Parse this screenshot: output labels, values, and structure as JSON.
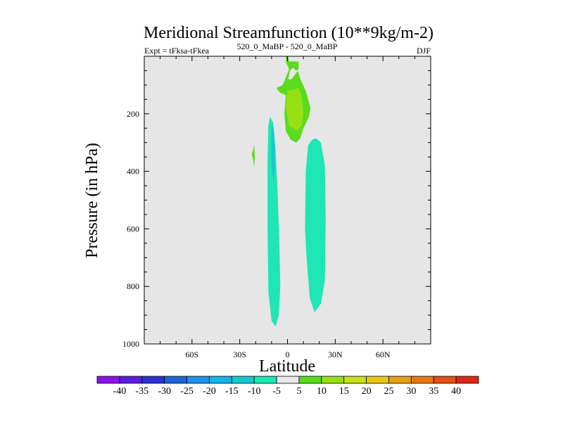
{
  "chart_data": {
    "type": "contour",
    "title": "Meridional Streamfunction (10**9kg/m-2)",
    "left_subtitle": "Expt = tFksa-tFkea",
    "center_subtitle": "520_0_MaBP - 520_0_MaBP",
    "right_subtitle": "DJF",
    "xlabel": "Latitude",
    "ylabel": "Pressure (in hPa)",
    "xlim": [
      -90,
      90
    ],
    "ylim": [
      1000,
      0
    ],
    "x_ticks": [
      {
        "value": -60,
        "label": "60S"
      },
      {
        "value": -30,
        "label": "30S"
      },
      {
        "value": 0,
        "label": "0"
      },
      {
        "value": 30,
        "label": "30N"
      },
      {
        "value": 60,
        "label": "60N"
      }
    ],
    "y_ticks": [
      {
        "value": 200,
        "label": "200"
      },
      {
        "value": 400,
        "label": "400"
      },
      {
        "value": 600,
        "label": "600"
      },
      {
        "value": 800,
        "label": "800"
      },
      {
        "value": 1000,
        "label": "1000"
      }
    ],
    "background_color": "#e6e6e6",
    "contour_levels": [
      -40,
      -35,
      -30,
      -25,
      -20,
      -15,
      -10,
      -5,
      5,
      10,
      15,
      20,
      25,
      30,
      35,
      40
    ],
    "colorbar_colors": [
      "#8a14e6",
      "#5a1ee0",
      "#2a32d2",
      "#1e64d8",
      "#1e90e8",
      "#14b4e6",
      "#14c8d2",
      "#1ee6b4",
      "#e8e8e8",
      "#5adc1e",
      "#96e014",
      "#c8e014",
      "#e6c814",
      "#e6a014",
      "#e67814",
      "#e65014",
      "#dc2814"
    ],
    "regions": [
      {
        "name": "sh-cell-outer",
        "level": "-10 to -5",
        "color": "#1ee6b4",
        "points": [
          [
            -11,
            210
          ],
          [
            -9,
            230
          ],
          [
            -7.5,
            320
          ],
          [
            -6,
            500
          ],
          [
            -5,
            680
          ],
          [
            -4.5,
            800
          ],
          [
            -5.5,
            900
          ],
          [
            -7.5,
            940
          ],
          [
            -10,
            920
          ],
          [
            -12,
            820
          ],
          [
            -12.5,
            600
          ],
          [
            -12.5,
            350
          ],
          [
            -12,
            240
          ]
        ]
      },
      {
        "name": "sh-cell-inner",
        "level": "-15 to -10",
        "color": "#14c8d2",
        "points": [
          [
            -10,
            235
          ],
          [
            -8.5,
            260
          ],
          [
            -8,
            330
          ],
          [
            -8,
            400
          ],
          [
            -9,
            430
          ],
          [
            -10.2,
            360
          ]
        ]
      },
      {
        "name": "nh-cell",
        "level": "-10 to -5",
        "color": "#1ee6b4",
        "points": [
          [
            18,
            285
          ],
          [
            21,
            300
          ],
          [
            23.5,
            380
          ],
          [
            24,
            560
          ],
          [
            23.5,
            780
          ],
          [
            21,
            860
          ],
          [
            17,
            890
          ],
          [
            14,
            840
          ],
          [
            12,
            700
          ],
          [
            11,
            600
          ],
          [
            11.5,
            400
          ],
          [
            13,
            310
          ],
          [
            15.5,
            290
          ]
        ]
      },
      {
        "name": "upper-cell-outer",
        "level": "5 to 10",
        "color": "#5adc1e",
        "points": [
          [
            -1,
            0
          ],
          [
            0.5,
            0
          ],
          [
            1,
            18
          ],
          [
            7,
            18
          ],
          [
            7,
            45
          ],
          [
            5.5,
            50
          ],
          [
            3.5,
            40
          ],
          [
            1.5,
            50
          ],
          [
            0.5,
            80
          ],
          [
            2.5,
            80
          ],
          [
            6.5,
            50
          ],
          [
            8,
            78
          ],
          [
            11.5,
            120
          ],
          [
            14.5,
            180
          ],
          [
            13.5,
            210
          ],
          [
            10,
            250
          ],
          [
            8,
            285
          ],
          [
            5.5,
            300
          ],
          [
            2,
            290
          ],
          [
            -1,
            260
          ],
          [
            -2,
            200
          ],
          [
            -1,
            135
          ],
          [
            -5,
            125
          ],
          [
            -7,
            110
          ],
          [
            -3,
            100
          ],
          [
            1,
            45
          ],
          [
            -1,
            20
          ]
        ]
      },
      {
        "name": "upper-cell-inner",
        "level": "10 to 15",
        "color": "#96e014",
        "points": [
          [
            0,
            120
          ],
          [
            7,
            110
          ],
          [
            9,
            140
          ],
          [
            10,
            200
          ],
          [
            9,
            240
          ],
          [
            6,
            260
          ],
          [
            1,
            240
          ],
          [
            -1,
            180
          ],
          [
            -0.5,
            140
          ]
        ]
      },
      {
        "name": "sh-isolated-positive",
        "level": "5 to 10",
        "color": "#5adc1e",
        "points": [
          [
            -21,
            305
          ],
          [
            -21.5,
            325
          ],
          [
            -22.5,
            340
          ],
          [
            -21.5,
            360
          ],
          [
            -21,
            385
          ],
          [
            -20.5,
            355
          ],
          [
            -20.8,
            320
          ]
        ]
      }
    ]
  }
}
